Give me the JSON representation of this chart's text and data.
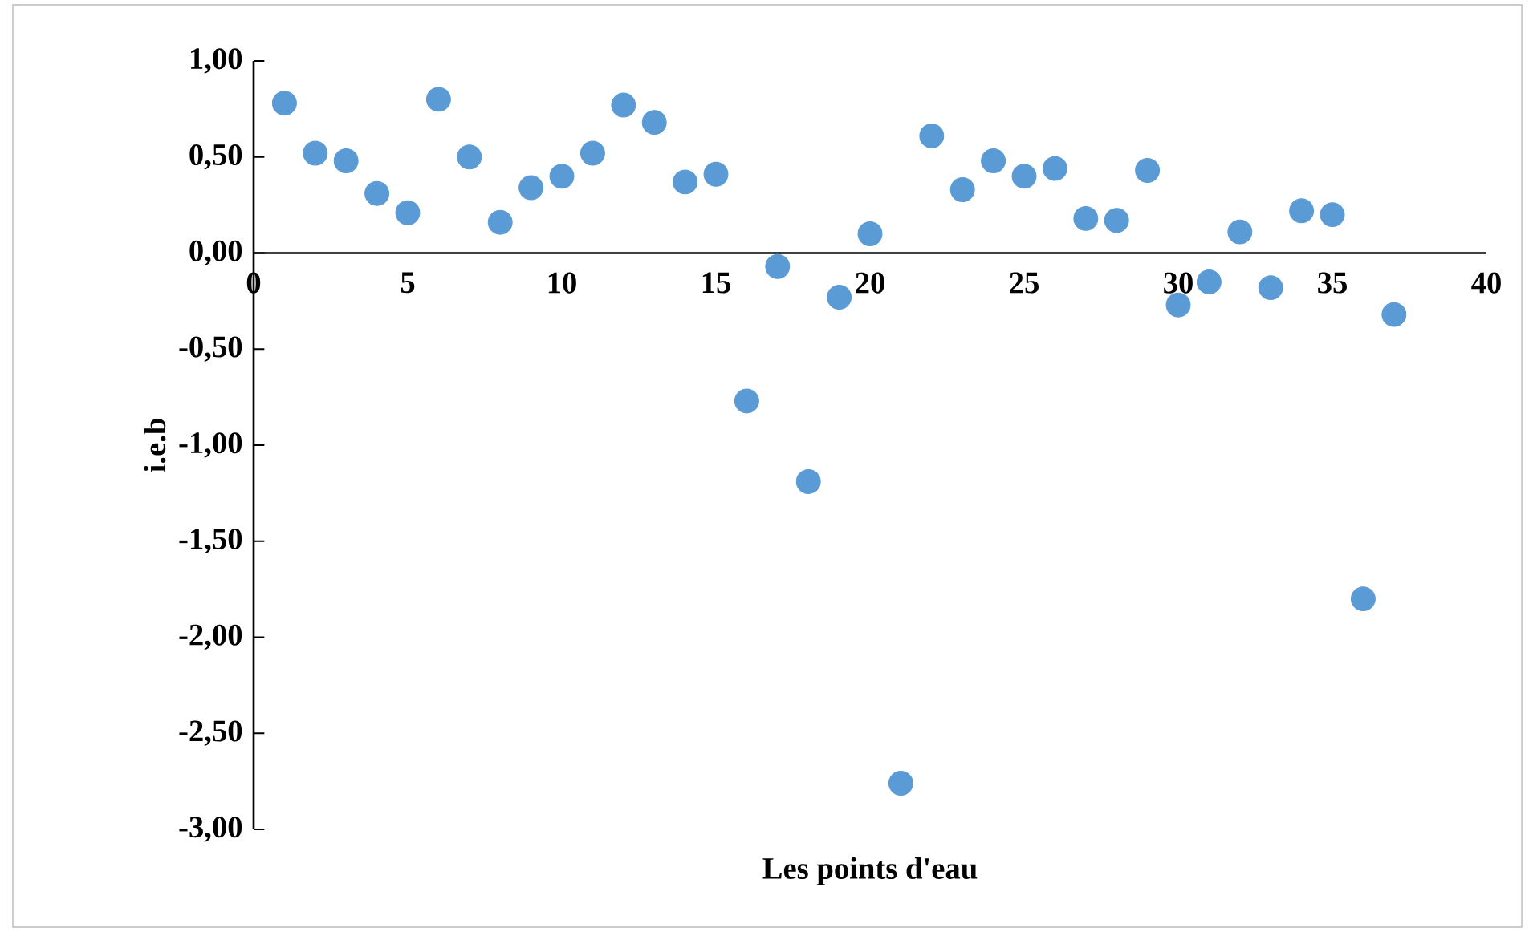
{
  "chart_data": {
    "type": "scatter",
    "xlabel": "Les points d'eau",
    "ylabel": "i.e.b",
    "x": [
      1,
      2,
      3,
      4,
      5,
      6,
      7,
      8,
      9,
      10,
      11,
      12,
      13,
      14,
      15,
      16,
      17,
      18,
      19,
      20,
      21,
      22,
      23,
      24,
      25,
      26,
      27,
      28,
      29,
      30,
      31,
      32,
      33,
      34,
      35,
      36,
      37
    ],
    "series": [
      {
        "color": "#5b9bd5",
        "values": [
          0.78,
          0.52,
          0.48,
          0.31,
          0.21,
          0.8,
          0.5,
          0.16,
          0.34,
          0.4,
          0.52,
          0.77,
          0.68,
          0.37,
          0.41,
          -0.77,
          -0.07,
          -1.19,
          -0.23,
          0.1,
          -2.76,
          0.61,
          0.33,
          0.48,
          0.4,
          0.44,
          0.18,
          0.17,
          0.43,
          -0.27,
          -0.15,
          0.11,
          -0.18,
          0.22,
          0.2,
          -1.8,
          -0.32
        ]
      }
    ],
    "xlim": [
      0,
      40
    ],
    "xticks": [
      0,
      5,
      10,
      15,
      20,
      25,
      30,
      35,
      40
    ],
    "ylim": [
      -3,
      1
    ],
    "yticks": [
      {
        "value": -3,
        "label": "-3,00"
      },
      {
        "value": -2.5,
        "label": "-2,50"
      },
      {
        "value": -2,
        "label": "-2,00"
      },
      {
        "value": -1.5,
        "label": "-1,50"
      },
      {
        "value": -1,
        "label": "-1,00"
      },
      {
        "value": -0.5,
        "label": "-0,50"
      },
      {
        "value": 0,
        "label": "0,00"
      },
      {
        "value": 0.5,
        "label": "0,50"
      },
      {
        "value": 1,
        "label": "1,00"
      }
    ],
    "grid": false
  }
}
